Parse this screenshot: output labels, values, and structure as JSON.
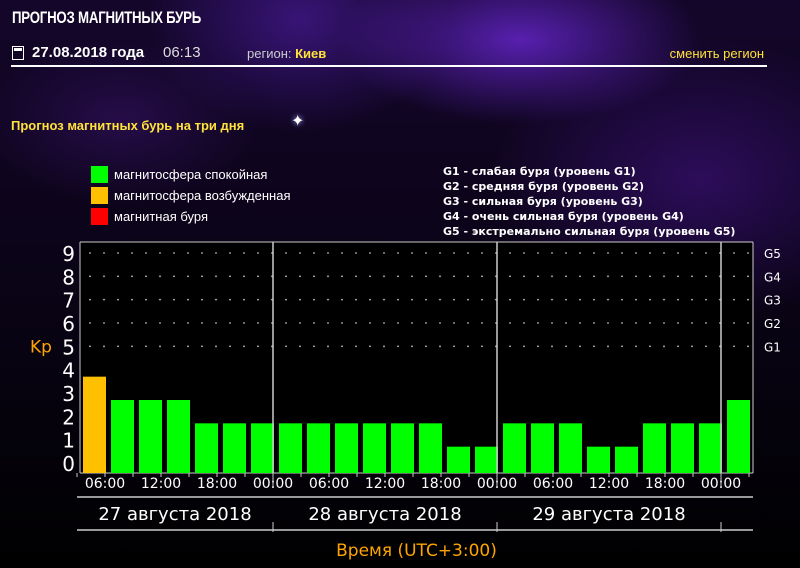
{
  "header": {
    "title": "ПРОГНОЗ МАГНИТНЫХ БУРЬ",
    "date": "27.08.2018 года",
    "time": "06:13",
    "region_label": "регион:",
    "region": "Киев",
    "change_region": "сменить регион"
  },
  "subtitle": "Прогноз магнитных бурь на три дня",
  "legend": [
    {
      "label": "магнитосфера спокойная",
      "color": "#00ff00"
    },
    {
      "label": "магнитосфера возбужденная",
      "color": "#ffc000"
    },
    {
      "label": "магнитная буря",
      "color": "#ff0000"
    }
  ],
  "g_legend": [
    "G1 - слабая буря (уровень G1)",
    "G2 - средняя буря (уровень G2)",
    "G3 - сильная буря (уровень G3)",
    "G4 - очень сильная буря (уровень G4)",
    "G5 - экстремально сильная буря (уровень G5)"
  ],
  "chart_data": {
    "type": "bar",
    "ylabel": "Kp",
    "xlabel": "Время (UTC+3:00)",
    "ylim": [
      0,
      9
    ],
    "yticks": [
      "0",
      "1",
      "2",
      "3",
      "4",
      "5",
      "6",
      "7",
      "8",
      "9"
    ],
    "g_levels": [
      {
        "kp": 5,
        "label": "G1"
      },
      {
        "kp": 6,
        "label": "G2"
      },
      {
        "kp": 7,
        "label": "G3"
      },
      {
        "kp": 8,
        "label": "G4"
      },
      {
        "kp": 9,
        "label": "G5"
      }
    ],
    "xticks": [
      "06:00",
      "12:00",
      "18:00",
      "00:00",
      "06:00",
      "12:00",
      "18:00",
      "00:00",
      "06:00",
      "12:00",
      "18:00",
      "00:00"
    ],
    "days": [
      {
        "label": "27 августа 2018",
        "bars": 7
      },
      {
        "label": "28 августа 2018",
        "bars": 8
      },
      {
        "label": "29 августа 2018",
        "bars": 8
      },
      {
        "label": "",
        "bars": 1
      }
    ],
    "values": [
      4,
      3,
      3,
      3,
      2,
      2,
      2,
      2,
      2,
      2,
      2,
      2,
      2,
      1,
      1,
      2,
      2,
      2,
      1,
      1,
      2,
      2,
      2,
      3
    ],
    "colors": {
      "quiet": "#00ff00",
      "active": "#ffc000",
      "storm": "#ff0000"
    }
  }
}
